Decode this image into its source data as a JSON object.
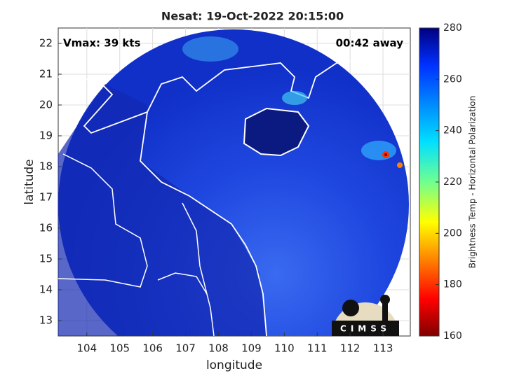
{
  "chart_data": {
    "type": "map",
    "title": "Nesat: 19-Oct-2022 20:15:00",
    "xlabel": "longitude",
    "ylabel": "latitude",
    "xlim": [
      103.13,
      113.83
    ],
    "ylim": [
      12.5,
      22.5
    ],
    "xticks": [
      104,
      105,
      106,
      107,
      108,
      109,
      110,
      111,
      112,
      113
    ],
    "yticks": [
      13,
      14,
      15,
      16,
      17,
      18,
      19,
      20,
      21,
      22
    ],
    "grid": true,
    "annotations": [
      "Vmax: 39 kts",
      "00:42 away"
    ],
    "colorbar_label": "Brightness Temp - Horizontal Polarization",
    "clim": [
      160,
      280
    ],
    "colorbar_ticks": [
      160,
      180,
      200,
      220,
      240,
      260,
      280
    ],
    "logo_text": "CIMSS"
  }
}
